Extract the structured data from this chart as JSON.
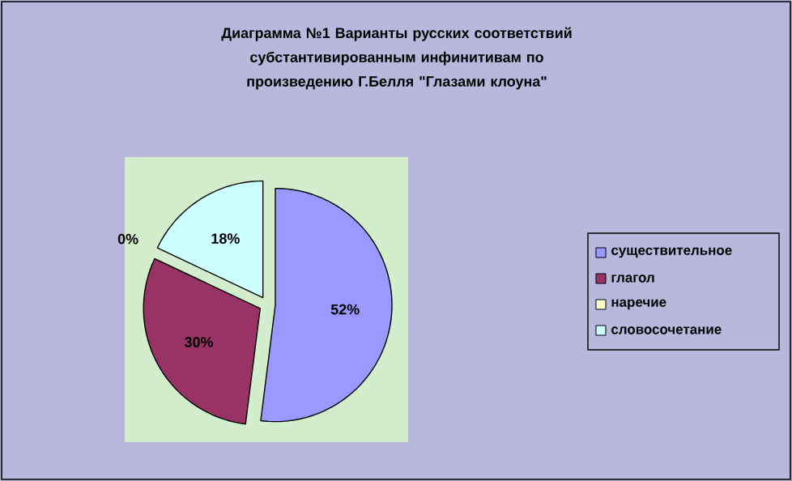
{
  "chart_data": {
    "type": "pie",
    "title": "Диаграмма №1 Варианты русских соответствий субстантивированным инфинитивам по произведению Г.Белля \"Глазами клоуна\"",
    "categories": [
      "существительное",
      "глагол",
      "наречие",
      "словосочетание"
    ],
    "values": [
      52,
      30,
      0,
      18
    ],
    "value_labels": [
      "52%",
      "30%",
      "0%",
      "18%"
    ],
    "colors": [
      "#9999ff",
      "#993366",
      "#ffffcc",
      "#ccffff"
    ],
    "legend": "right"
  }
}
